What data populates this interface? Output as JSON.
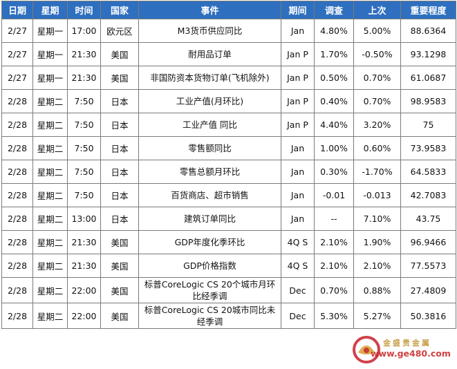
{
  "columns": [
    "日期",
    "星期",
    "时间",
    "国家",
    "事件",
    "期间",
    "调查",
    "上次",
    "重要程度"
  ],
  "rows": [
    [
      "2/27",
      "星期一",
      "17:00",
      "欧元区",
      "M3货币供应同比",
      "Jan",
      "4.80%",
      "5.00%",
      "88.6364"
    ],
    [
      "2/27",
      "星期一",
      "21:30",
      "美国",
      "耐用品订单",
      "Jan P",
      "1.70%",
      "-0.50%",
      "93.1298"
    ],
    [
      "2/27",
      "星期一",
      "21:30",
      "美国",
      "非国防资本货物订单(飞机除外)",
      "Jan P",
      "0.50%",
      "0.70%",
      "61.0687"
    ],
    [
      "2/28",
      "星期二",
      "7:50",
      "日本",
      "工业产值(月环比)",
      "Jan P",
      "0.40%",
      "0.70%",
      "98.9583"
    ],
    [
      "2/28",
      "星期二",
      "7:50",
      "日本",
      "工业产值 同比",
      "Jan P",
      "4.40%",
      "3.20%",
      "75"
    ],
    [
      "2/28",
      "星期二",
      "7:50",
      "日本",
      "零售额同比",
      "Jan",
      "1.00%",
      "0.60%",
      "73.9583"
    ],
    [
      "2/28",
      "星期二",
      "7:50",
      "日本",
      "零售总额月环比",
      "Jan",
      "0.30%",
      "-1.70%",
      "64.5833"
    ],
    [
      "2/28",
      "星期二",
      "7:50",
      "日本",
      "百货商店、超市销售",
      "Jan",
      "-0.01",
      "-0.013",
      "42.7083"
    ],
    [
      "2/28",
      "星期二",
      "13:00",
      "日本",
      "建筑订单同比",
      "Jan",
      "--",
      "7.10%",
      "43.75"
    ],
    [
      "2/28",
      "星期二",
      "21:30",
      "美国",
      "GDP年度化季环比",
      "4Q S",
      "2.10%",
      "1.90%",
      "96.9466"
    ],
    [
      "2/28",
      "星期二",
      "21:30",
      "美国",
      "GDP价格指数",
      "4Q S",
      "2.10%",
      "2.10%",
      "77.5573"
    ],
    [
      "2/28",
      "星期二",
      "22:00",
      "美国",
      "标普CoreLogic CS 20个城市月环比经季调",
      "Dec",
      "0.70%",
      "0.88%",
      "27.4809"
    ],
    [
      "2/28",
      "星期二",
      "22:00",
      "美国",
      "标普CoreLogic CS 20城市同比未经季调",
      "Dec",
      "5.30%",
      "5.27%",
      "50.3816"
    ]
  ],
  "watermark": {
    "name": "金盛贵金属",
    "url": "www.ge480.com",
    "logo_icon": "gold-ingot-logo-icon",
    "colors": {
      "logo_red": "#c8202a",
      "gold": "#d9a441"
    }
  },
  "colors": {
    "header_bg": "#2e6fbf",
    "header_text": "#ffffff",
    "grid": "#7a7a7a"
  }
}
